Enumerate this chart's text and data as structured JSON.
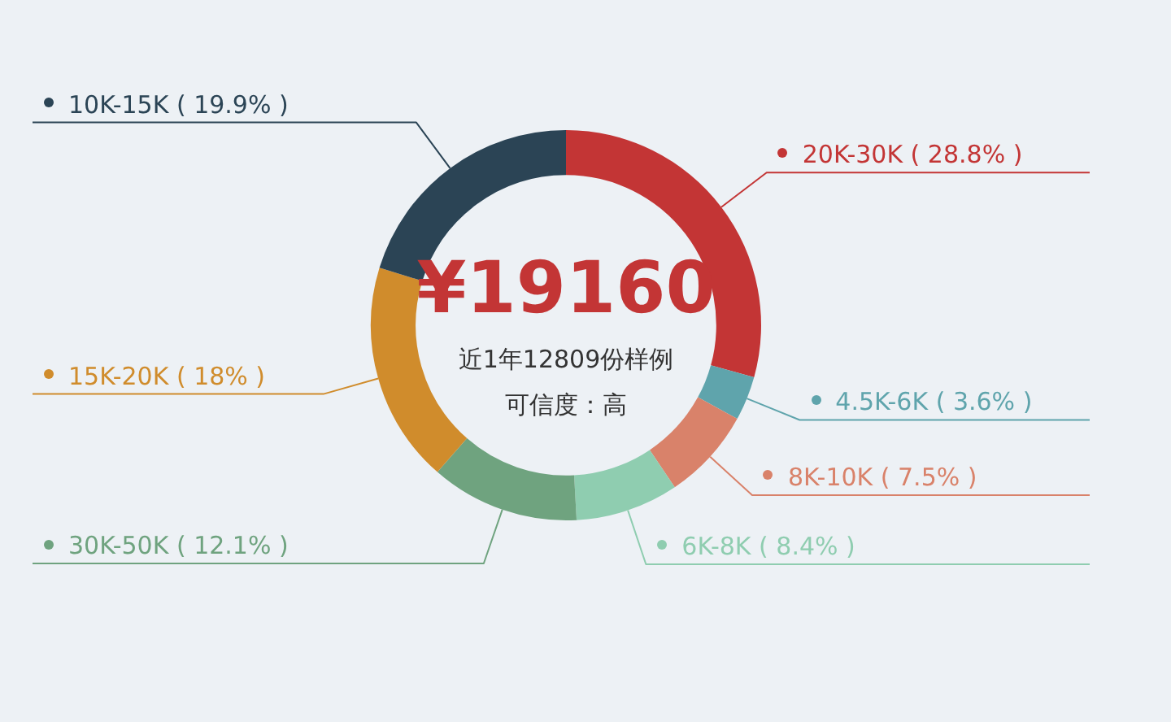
{
  "chart_data": {
    "type": "donut",
    "title": "¥19160",
    "annotations": [
      "近1年12809份样例",
      "可信度：高"
    ],
    "categories": [
      "20K-30K",
      "4.5K-6K",
      "8K-10K",
      "6K-8K",
      "30K-50K",
      "15K-20K",
      "10K-15K"
    ],
    "values": [
      28.8,
      3.6,
      7.5,
      8.4,
      12.1,
      18,
      19.9
    ],
    "value_labels": [
      "( 28.8% )",
      "( 3.6% )",
      "( 7.5% )",
      "( 8.4% )",
      "( 12.1% )",
      "( 18% )",
      "( 19.9% )"
    ],
    "legend": "bottom left",
    "colors": [
      "#c33535",
      "#5fa4ac",
      "#d9826a",
      "#8fcdb0",
      "#6fa37f",
      "#d08c2c",
      "#2b4455"
    ]
  }
}
